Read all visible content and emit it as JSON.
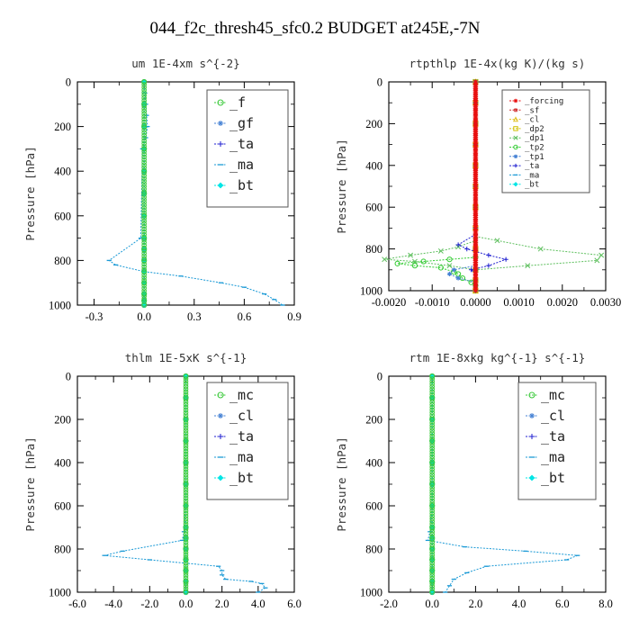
{
  "title": "044_f2c_thresh45_sfc0.2  BUDGET at245E,-7N",
  "chart_data": [
    {
      "type": "line",
      "title": "um  1E-4xm s^{-2}",
      "ylabel": "Pressure [hPa]",
      "xlim": [
        -0.4,
        0.9
      ],
      "ylim": [
        1000,
        0
      ],
      "xticks": [
        -0.3,
        0.0,
        0.3,
        0.6,
        0.9
      ],
      "xtick_labels": [
        "-0.3",
        "0.0",
        "0.3",
        "0.6",
        "0.9"
      ],
      "yticks": [
        0,
        200,
        400,
        600,
        800,
        1000
      ],
      "legend_position": "top-right",
      "series": [
        {
          "name": "_f",
          "color": "#39c939",
          "marker": "circle",
          "x": [
            0,
            0,
            0,
            0,
            0,
            0,
            0,
            0,
            0,
            0,
            0,
            0,
            0,
            0,
            0
          ],
          "y": [
            0,
            100,
            200,
            300,
            400,
            500,
            600,
            700,
            750,
            800,
            850,
            900,
            950,
            980,
            1000
          ]
        },
        {
          "name": "_gf",
          "color": "#4682d4",
          "marker": "star",
          "x": [
            0,
            0,
            0,
            0,
            0,
            0,
            0,
            0,
            0,
            0,
            0,
            0,
            0,
            0,
            0
          ],
          "y": [
            0,
            100,
            200,
            300,
            400,
            500,
            600,
            700,
            750,
            800,
            850,
            900,
            950,
            980,
            1000
          ]
        },
        {
          "name": "_ta",
          "color": "#1f1fd0",
          "marker": "plus",
          "x": [
            0,
            0,
            0,
            0,
            0,
            0,
            0,
            0,
            0,
            0,
            0,
            0,
            0,
            0,
            0
          ],
          "y": [
            0,
            100,
            200,
            300,
            400,
            500,
            600,
            700,
            750,
            800,
            850,
            900,
            950,
            980,
            1000
          ]
        },
        {
          "name": "_ma",
          "color": "#1b9ad6",
          "marker": "dash",
          "x": [
            0,
            0.005,
            0.01,
            0.015,
            0.02,
            0.01,
            0.0,
            -0.01,
            -0.02,
            -0.21,
            -0.17,
            0.0,
            0.22,
            0.46,
            0.6,
            0.72,
            0.78,
            0.83
          ],
          "y": [
            0,
            50,
            100,
            150,
            200,
            250,
            270,
            300,
            700,
            800,
            820,
            850,
            870,
            900,
            920,
            950,
            975,
            1000
          ]
        },
        {
          "name": "_bt",
          "color": "#00e5e5",
          "marker": "diamond",
          "x": [
            0,
            0,
            0,
            0,
            0,
            0,
            0,
            0,
            0,
            0,
            0,
            0,
            0,
            0,
            0
          ],
          "y": [
            0,
            100,
            200,
            300,
            400,
            500,
            600,
            700,
            750,
            800,
            850,
            900,
            950,
            980,
            1000
          ]
        }
      ]
    },
    {
      "type": "line",
      "title": "rtpthlp  1E-4x(kg K)/(kg s)",
      "ylabel": "Pressure [hPa]",
      "xlim": [
        -0.002,
        0.003
      ],
      "ylim": [
        1000,
        0
      ],
      "xticks": [
        -0.002,
        -0.001,
        0.0,
        0.001,
        0.002,
        0.003
      ],
      "xtick_labels": [
        "-0.0020",
        "-0.0010",
        "0.0000",
        "0.0010",
        "0.0020",
        "0.0030"
      ],
      "yticks": [
        0,
        200,
        400,
        600,
        800,
        1000
      ],
      "legend_position": "top-right",
      "series": [
        {
          "name": "_forcing",
          "color": "#e81010",
          "marker": "star",
          "x": [
            0,
            0,
            0,
            0,
            0,
            0,
            0,
            0,
            0,
            0,
            0,
            0
          ],
          "y": [
            0,
            100,
            200,
            300,
            400,
            500,
            600,
            700,
            800,
            900,
            950,
            1000
          ]
        },
        {
          "name": "_sf",
          "color": "#d03030",
          "marker": "hash",
          "x": [
            0,
            0,
            0,
            0,
            0,
            0,
            0,
            0,
            0,
            0,
            0,
            0
          ],
          "y": [
            0,
            100,
            200,
            300,
            400,
            500,
            600,
            700,
            800,
            900,
            950,
            1000
          ]
        },
        {
          "name": "_cl",
          "color": "#e0c020",
          "marker": "triangle",
          "x": [
            0,
            0,
            0,
            0,
            0,
            0,
            0,
            0,
            0,
            0,
            0,
            0
          ],
          "y": [
            0,
            100,
            200,
            300,
            400,
            500,
            600,
            700,
            800,
            900,
            950,
            1000
          ]
        },
        {
          "name": "_dp2",
          "color": "#d0c000",
          "marker": "square",
          "x": [
            0,
            0,
            0,
            0,
            0,
            0,
            0,
            0,
            0,
            0,
            0,
            0
          ],
          "y": [
            0,
            100,
            200,
            300,
            400,
            500,
            600,
            700,
            800,
            900,
            950,
            1000
          ]
        },
        {
          "name": "_dp1",
          "color": "#60c060",
          "marker": "cross",
          "x": [
            0,
            0,
            0.0005,
            0.0015,
            0.0029,
            0.0028,
            0.0012,
            0,
            -0.0006,
            -0.0014,
            -0.0021,
            -0.0015,
            -0.0008,
            -0.0004,
            0
          ],
          "y": [
            0,
            740,
            760,
            800,
            830,
            855,
            880,
            900,
            880,
            860,
            850,
            830,
            810,
            790,
            760
          ]
        },
        {
          "name": "_tp2",
          "color": "#33cc33",
          "marker": "circle",
          "x": [
            0,
            -0.0006,
            -0.0012,
            -0.0018,
            -0.0014,
            -0.0008,
            -0.0005,
            -0.0004,
            -0.0003,
            -0.0001,
            0
          ],
          "y": [
            840,
            850,
            860,
            870,
            880,
            890,
            910,
            920,
            940,
            960,
            975
          ]
        },
        {
          "name": "_tp1",
          "color": "#4682d4",
          "marker": "star",
          "x": [
            0,
            -0.0005,
            -0.0006,
            -0.0004,
            0
          ],
          "y": [
            880,
            900,
            920,
            940,
            960
          ]
        },
        {
          "name": "_ta",
          "color": "#1f1fd0",
          "marker": "plus",
          "x": [
            0,
            -0.0004,
            -0.0002,
            0.0003,
            0.0007,
            0.0003,
            -0.0001,
            0
          ],
          "y": [
            730,
            780,
            800,
            830,
            850,
            880,
            900,
            920
          ]
        },
        {
          "name": "_ma",
          "color": "#1b9ad6",
          "marker": "dash",
          "x": [
            0,
            0,
            0,
            0,
            0,
            0,
            0,
            0,
            0,
            0,
            0,
            0
          ],
          "y": [
            0,
            100,
            200,
            300,
            400,
            500,
            600,
            700,
            800,
            900,
            950,
            1000
          ]
        },
        {
          "name": "_bt",
          "color": "#00e5e5",
          "marker": "diamond",
          "x": [
            0,
            0,
            0,
            0,
            0,
            0,
            0,
            0,
            0,
            0,
            0,
            0
          ],
          "y": [
            0,
            100,
            200,
            300,
            400,
            500,
            600,
            700,
            800,
            900,
            950,
            1000
          ]
        }
      ]
    },
    {
      "type": "line",
      "title": "thlm  1E-5xK s^{-1}",
      "ylabel": "Pressure [hPa]",
      "xlim": [
        -6.0,
        6.0
      ],
      "ylim": [
        1000,
        0
      ],
      "xticks": [
        -6.0,
        -4.0,
        -2.0,
        0.0,
        2.0,
        4.0,
        6.0
      ],
      "xtick_labels": [
        "-6.0",
        "-4.0",
        "-2.0",
        "0.0",
        "2.0",
        "4.0",
        "6.0"
      ],
      "yticks": [
        0,
        200,
        400,
        600,
        800,
        1000
      ],
      "legend_position": "top-right",
      "series": [
        {
          "name": "_mc",
          "color": "#39c939",
          "marker": "circle",
          "x": [
            0,
            0,
            0,
            0,
            0,
            0,
            0,
            0,
            0,
            0,
            0,
            0,
            0,
            0
          ],
          "y": [
            0,
            100,
            200,
            300,
            400,
            500,
            600,
            700,
            750,
            800,
            850,
            900,
            950,
            1000
          ]
        },
        {
          "name": "_cl",
          "color": "#4682d4",
          "marker": "star",
          "x": [
            0,
            0,
            0,
            0,
            0,
            0,
            0,
            0,
            0,
            0,
            0,
            0,
            0,
            0
          ],
          "y": [
            0,
            100,
            200,
            300,
            400,
            500,
            600,
            700,
            750,
            800,
            850,
            900,
            950,
            1000
          ]
        },
        {
          "name": "_ta",
          "color": "#1f1fd0",
          "marker": "plus",
          "x": [
            0,
            0,
            0,
            0,
            0,
            0,
            0,
            0,
            0,
            0,
            0,
            0,
            0,
            0
          ],
          "y": [
            0,
            100,
            200,
            300,
            400,
            500,
            600,
            700,
            750,
            800,
            850,
            900,
            950,
            1000
          ]
        },
        {
          "name": "_ma",
          "color": "#1b9ad6",
          "marker": "dash",
          "x": [
            0,
            0,
            -0.1,
            -0.2,
            -3.5,
            -4.5,
            -2.0,
            1.8,
            2.0,
            2.0,
            2.2,
            3.6,
            4.2,
            4.4,
            4.0
          ],
          "y": [
            0,
            600,
            720,
            760,
            810,
            830,
            850,
            880,
            900,
            920,
            940,
            950,
            960,
            980,
            1000
          ]
        },
        {
          "name": "_bt",
          "color": "#00e5e5",
          "marker": "diamond",
          "x": [
            0,
            0,
            0,
            0,
            0,
            0,
            0,
            0,
            0,
            0,
            0,
            0,
            0,
            0
          ],
          "y": [
            0,
            100,
            200,
            300,
            400,
            500,
            600,
            700,
            750,
            800,
            850,
            900,
            950,
            1000
          ]
        }
      ]
    },
    {
      "type": "line",
      "title": "rtm  1E-8xkg kg^{-1} s^{-1}",
      "ylabel": "Pressure [hPa]",
      "xlim": [
        -2.0,
        8.0
      ],
      "ylim": [
        1000,
        0
      ],
      "xticks": [
        -2.0,
        0.0,
        2.0,
        4.0,
        6.0,
        8.0
      ],
      "xtick_labels": [
        "-2.0",
        "0.0",
        "2.0",
        "4.0",
        "6.0",
        "8.0"
      ],
      "yticks": [
        0,
        200,
        400,
        600,
        800,
        1000
      ],
      "legend_position": "top-right",
      "series": [
        {
          "name": "_mc",
          "color": "#39c939",
          "marker": "circle",
          "x": [
            0,
            0,
            0,
            0,
            0,
            0,
            0,
            0,
            0,
            0,
            0,
            0,
            0,
            0
          ],
          "y": [
            0,
            100,
            200,
            300,
            400,
            500,
            600,
            700,
            750,
            800,
            850,
            900,
            950,
            1000
          ]
        },
        {
          "name": "_cl",
          "color": "#4682d4",
          "marker": "star",
          "x": [
            0,
            0,
            0,
            0,
            0,
            0,
            0,
            0,
            0,
            0,
            0,
            0,
            0,
            0
          ],
          "y": [
            0,
            100,
            200,
            300,
            400,
            500,
            600,
            700,
            750,
            800,
            850,
            900,
            950,
            1000
          ]
        },
        {
          "name": "_ta",
          "color": "#1f1fd0",
          "marker": "plus",
          "x": [
            0,
            0,
            0,
            0,
            0,
            0,
            0,
            0,
            0,
            0,
            0,
            0,
            0,
            0
          ],
          "y": [
            0,
            100,
            200,
            300,
            400,
            500,
            600,
            700,
            750,
            800,
            850,
            900,
            950,
            1000
          ]
        },
        {
          "name": "_ma",
          "color": "#1b9ad6",
          "marker": "dash",
          "x": [
            0,
            0,
            -0.1,
            -0.2,
            1.5,
            4.3,
            6.7,
            6.2,
            2.5,
            1.6,
            1.0,
            0.8,
            0.6
          ],
          "y": [
            0,
            600,
            720,
            760,
            790,
            810,
            830,
            850,
            880,
            910,
            940,
            970,
            1000
          ]
        },
        {
          "name": "_bt",
          "color": "#00e5e5",
          "marker": "diamond",
          "x": [
            0,
            0,
            0,
            0,
            0,
            0,
            0,
            0,
            0,
            0,
            0,
            0,
            0,
            0
          ],
          "y": [
            0,
            100,
            200,
            300,
            400,
            500,
            600,
            700,
            750,
            800,
            850,
            900,
            950,
            1000
          ]
        }
      ]
    }
  ]
}
